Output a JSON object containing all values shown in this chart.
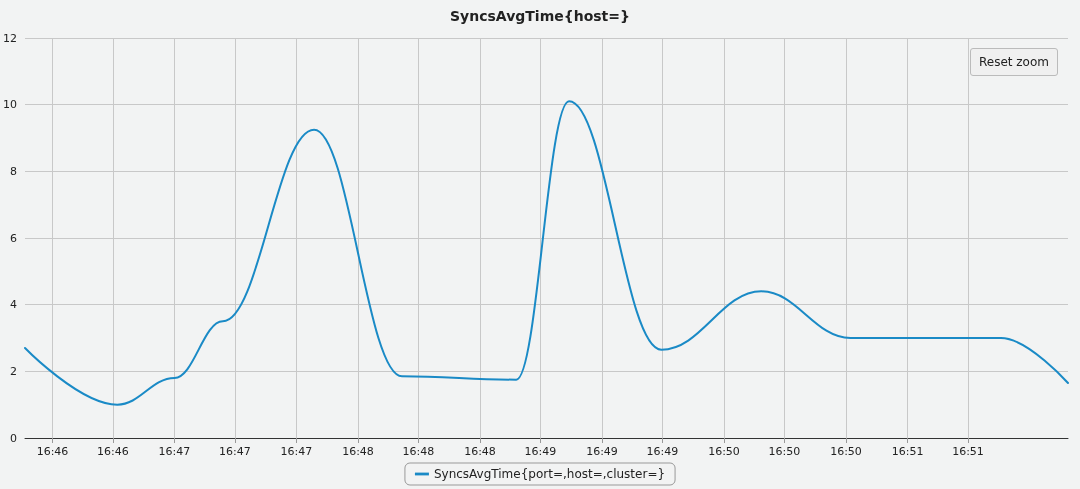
{
  "chart_data": {
    "type": "line",
    "title": "SyncsAvgTime{host=}",
    "x": [
      16.7628,
      16.7712,
      16.7764,
      16.7808,
      16.7891,
      16.7971,
      16.8075,
      16.8123,
      16.8207,
      16.8298,
      16.8379,
      16.8516,
      16.8577
    ],
    "series": [
      {
        "name": "SyncsAvgTime{port=,host=,cluster=}",
        "color": "#1a8ac6",
        "values": [
          2.7,
          1.0,
          1.8,
          3.5,
          9.25,
          1.85,
          1.75,
          10.1,
          2.65,
          4.4,
          3.0,
          3.0,
          1.65
        ]
      }
    ],
    "xlim": [
      16.7628,
      16.8577
    ],
    "xticks": [
      {
        "value": 16.7653,
        "label": "16:46"
      },
      {
        "value": 16.7708,
        "label": "16:46"
      },
      {
        "value": 16.7764,
        "label": "16:47"
      },
      {
        "value": 16.7819,
        "label": "16:47"
      },
      {
        "value": 16.7875,
        "label": "16:47"
      },
      {
        "value": 16.7931,
        "label": "16:48"
      },
      {
        "value": 16.7986,
        "label": "16:48"
      },
      {
        "value": 16.8042,
        "label": "16:48"
      },
      {
        "value": 16.8097,
        "label": "16:49"
      },
      {
        "value": 16.8153,
        "label": "16:49"
      },
      {
        "value": 16.8208,
        "label": "16:49"
      },
      {
        "value": 16.8264,
        "label": "16:50"
      },
      {
        "value": 16.8319,
        "label": "16:50"
      },
      {
        "value": 16.8375,
        "label": "16:50"
      },
      {
        "value": 16.8431,
        "label": "16:51"
      },
      {
        "value": 16.8486,
        "label": "16:51"
      }
    ],
    "ylim": [
      0,
      12
    ],
    "yticks": [
      0,
      2,
      4,
      6,
      8,
      10,
      12
    ],
    "grid": true,
    "legend": "bottom",
    "marker": "none",
    "line_style": "solid",
    "annotations": [
      "Reset zoom"
    ]
  }
}
